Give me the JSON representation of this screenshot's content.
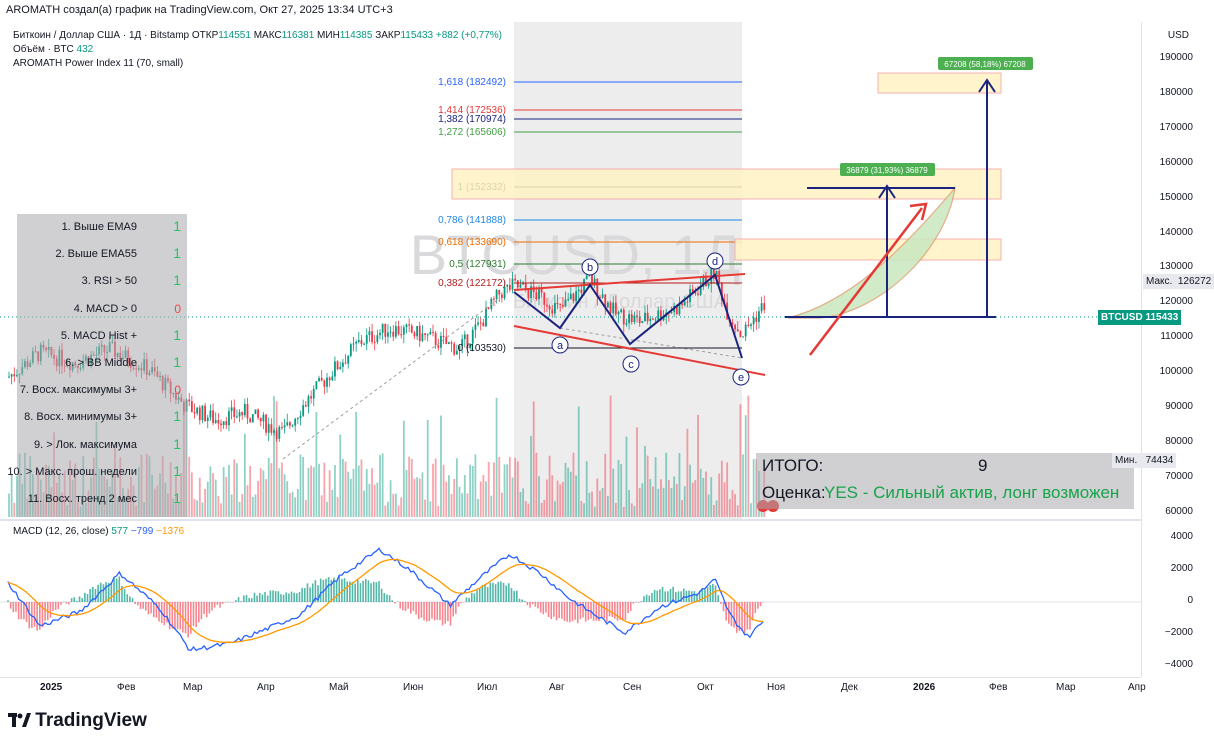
{
  "header": {
    "author_line": "AROMATH создал(а) график на TradingView.com, Окт 27, 2025 13:34 UTC+3"
  },
  "legend": {
    "symbol": "Биткоин / Доллар США · 1Д · Bitstamp",
    "open_label": "ОТКР",
    "open": "114551",
    "high_label": "МАКС",
    "high": "116381",
    "low_label": "МИН",
    "low": "114385",
    "close_label": "ЗАКР",
    "close": "115433",
    "change": "+882 (+0,77%)",
    "volume_label": "Объём · BTC",
    "volume": "432",
    "indicator": "AROMATH Power Index 11 (70, small)"
  },
  "watermark": {
    "main": "BTCUSD, 1Д",
    "sub": "Биткоин / Доллар США"
  },
  "checklist": [
    {
      "label": "1. Выше EMA9",
      "value": "1"
    },
    {
      "label": "2. Выше EMA55",
      "value": "1"
    },
    {
      "label": "3. RSI > 50",
      "value": "1"
    },
    {
      "label": "4. MACD > 0",
      "value": "0"
    },
    {
      "label": "5. MACD Hist +",
      "value": "1"
    },
    {
      "label": "6. > BB Middle",
      "value": "1"
    },
    {
      "label": "7. Восх. максимумы 3+",
      "value": "0"
    },
    {
      "label": "8. Восх. минимумы 3+",
      "value": "1"
    },
    {
      "label": "9. > Лок. максимума",
      "value": "1"
    },
    {
      "label": "10. > Макс. прош. недели",
      "value": "1"
    },
    {
      "label": "11. Восх. тренд 2 мес",
      "value": "1"
    }
  ],
  "summary": {
    "total_label": "ИТОГО:",
    "total": "9",
    "rating_label": "Оценка:",
    "rating": "YES - Сильный актив, лонг возможен"
  },
  "fibonacci": [
    {
      "label": "1,618 (182492)",
      "color": "#2962ff"
    },
    {
      "label": "1,414 (172536)",
      "color": "#e53935"
    },
    {
      "label": "1,382 (170974)",
      "color": "#1a237e"
    },
    {
      "label": "1,272 (165606)",
      "color": "#43a047"
    },
    {
      "label": "1 (152332)",
      "color": "#131722"
    },
    {
      "label": "0,786 (141888)",
      "color": "#1e88e5"
    },
    {
      "label": "0,618 (133690)",
      "color": "#ef6c00"
    },
    {
      "label": "0,5 (127931)",
      "color": "#2e7d32"
    },
    {
      "label": "0,382 (122172)",
      "color": "#b71c1c"
    },
    {
      "label": "0 (103530)",
      "color": "#131722"
    }
  ],
  "pattern_points": [
    "a",
    "b",
    "c",
    "d",
    "e"
  ],
  "targets": {
    "target1": "36879 (31,93%) 36879",
    "target2": "67208 (58,18%) 67208"
  },
  "price_axis": {
    "currency": "USD",
    "ticks": [
      "190000",
      "180000",
      "170000",
      "160000",
      "150000",
      "140000",
      "130000",
      "120000",
      "110000",
      "100000",
      "90000",
      "80000",
      "70000",
      "60000"
    ],
    "max_label": "Макс.",
    "max_value": "126272",
    "last_label": "BTCUSD",
    "last_value": "115433",
    "min_label": "Мин.",
    "min_value": "74434"
  },
  "macd": {
    "title": "MACD (12, 26, close)",
    "v1": "577",
    "v2": "−799",
    "v3": "−1376",
    "ticks": [
      "4000",
      "2000",
      "0",
      "−2000",
      "−4000"
    ]
  },
  "time_axis": [
    "2025",
    "Фев",
    "Мар",
    "Апр",
    "Май",
    "Июн",
    "Июл",
    "Авг",
    "Сен",
    "Окт",
    "Ноя",
    "Дек",
    "2026",
    "Фев",
    "Мар",
    "Апр"
  ],
  "branding": "TradingView",
  "colors": {
    "up": "#089981",
    "down": "#f23645",
    "macd": "#2962ff",
    "signal": "#ff9800",
    "accent_blue": "#1a237e",
    "accent_red": "#e53935",
    "last_price": "#089981"
  }
}
